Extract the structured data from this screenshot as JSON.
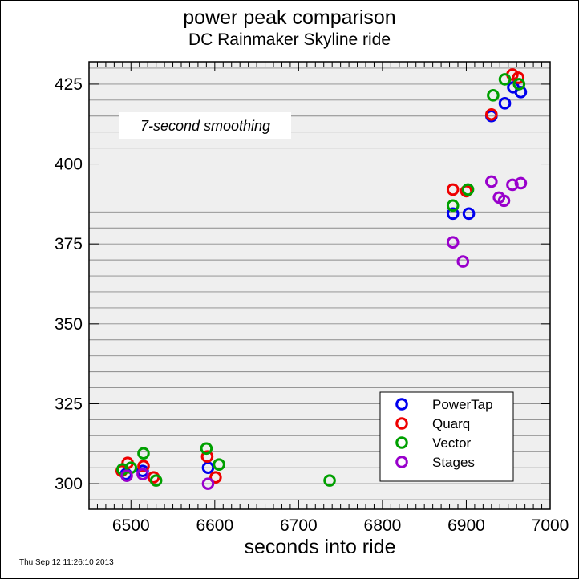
{
  "header": {
    "title": "power peak comparison",
    "subtitle": "DC Rainmaker Skyline ride"
  },
  "footer": {
    "timestamp": "Thu Sep 12 11:26:10 2013"
  },
  "chart_data": {
    "type": "scatter",
    "title": "power peak comparison",
    "subtitle": "DC Rainmaker Skyline ride",
    "xlabel": "seconds into ride",
    "ylabel": "",
    "xlim": [
      6450,
      7000
    ],
    "ylim": [
      292,
      432
    ],
    "x_ticks": [
      6500,
      6600,
      6700,
      6800,
      6900,
      7000
    ],
    "x_tick_labels": [
      "6500",
      "6600",
      "6700",
      "6800",
      "6900",
      "7000"
    ],
    "y_ticks": [
      300,
      325,
      350,
      375,
      400,
      425
    ],
    "y_tick_labels": [
      "300",
      "325",
      "350",
      "375",
      "400",
      "425"
    ],
    "y_minor_step": 5,
    "grid": "horizontal lines every 5 units",
    "background": "#efefef",
    "legend_position": "bottom-right",
    "annotation": "7-second smoothing",
    "marker": "open circle",
    "series": [
      {
        "name": "PowerTap",
        "color": "#0000ee",
        "points": [
          [
            6494,
            303
          ],
          [
            6514,
            304
          ],
          [
            6592,
            305
          ],
          [
            6884,
            384.5
          ],
          [
            6903,
            384.5
          ],
          [
            6930,
            415
          ],
          [
            6946,
            419
          ],
          [
            6956,
            424
          ],
          [
            6965,
            422.5
          ]
        ]
      },
      {
        "name": "Quarq",
        "color": "#ee0000",
        "points": [
          [
            6489,
            304
          ],
          [
            6496,
            306.5
          ],
          [
            6515,
            305.5
          ],
          [
            6527,
            302
          ],
          [
            6591,
            308.5
          ],
          [
            6601,
            302
          ],
          [
            6884,
            392
          ],
          [
            6900,
            391.5
          ],
          [
            6930,
            415.5
          ],
          [
            6955,
            428
          ],
          [
            6962,
            427
          ]
        ]
      },
      {
        "name": "Vector",
        "color": "#00a000",
        "points": [
          [
            6490,
            304.5
          ],
          [
            6500,
            305
          ],
          [
            6515,
            309.5
          ],
          [
            6530,
            301
          ],
          [
            6590,
            311
          ],
          [
            6605,
            306
          ],
          [
            6737,
            301
          ],
          [
            6884,
            387
          ],
          [
            6902,
            392
          ],
          [
            6932,
            421.5
          ],
          [
            6946,
            426.5
          ],
          [
            6963,
            425
          ]
        ]
      },
      {
        "name": "Stages",
        "color": "#9900cc",
        "points": [
          [
            6495,
            302.5
          ],
          [
            6514,
            303
          ],
          [
            6592,
            300
          ],
          [
            6884,
            375.5
          ],
          [
            6896,
            369.5
          ],
          [
            6930,
            394.5
          ],
          [
            6939,
            389.5
          ],
          [
            6945,
            388.5
          ],
          [
            6955,
            393.5
          ],
          [
            6965,
            394
          ]
        ]
      }
    ]
  }
}
